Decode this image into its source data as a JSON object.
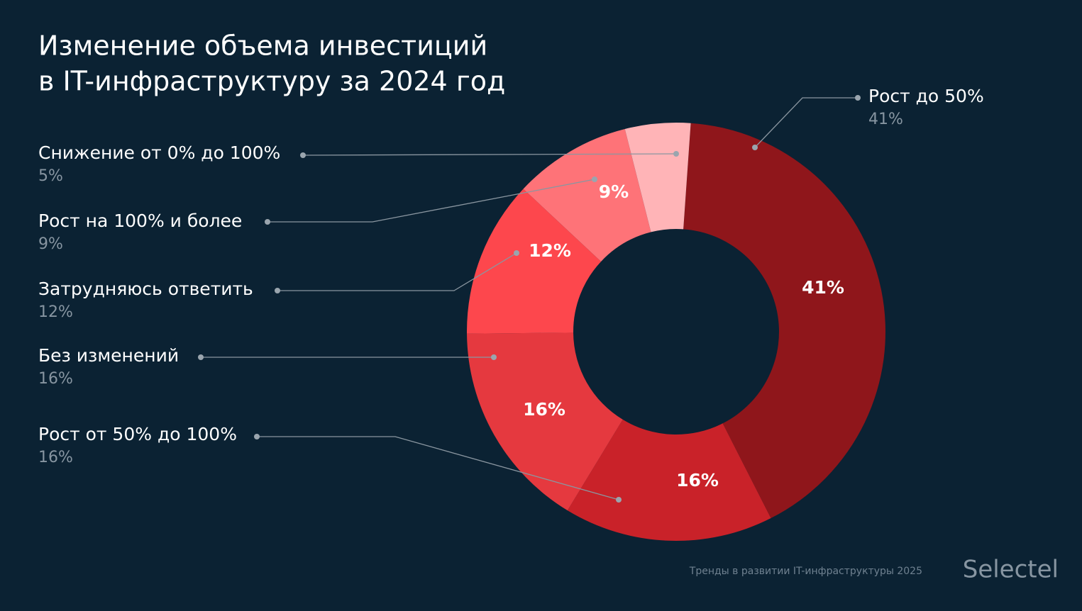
{
  "chart_data": {
    "type": "pie",
    "title": [
      "Изменение объема инвестиций",
      "в IT-инфраструктуру за 2024 год"
    ],
    "categories": [
      "Рост до 50%",
      "Рост от 50% до 100%",
      "Без изменений",
      "Затрудняюсь ответить",
      "Рост на 100% и более",
      "Снижение от 0% до 100%"
    ],
    "values": [
      41,
      16,
      16,
      12,
      9,
      5
    ],
    "value_labels": [
      "41%",
      "16%",
      "16%",
      "12%",
      "9%",
      "5%"
    ],
    "colors": [
      "#8f161b",
      "#c92229",
      "#e5393f",
      "#fd474d",
      "#fe7378",
      "#ffb4b7"
    ]
  },
  "footer": {
    "source": "Тренды в развитии IT-инфраструктуры 2025",
    "logo": "Selectel"
  }
}
